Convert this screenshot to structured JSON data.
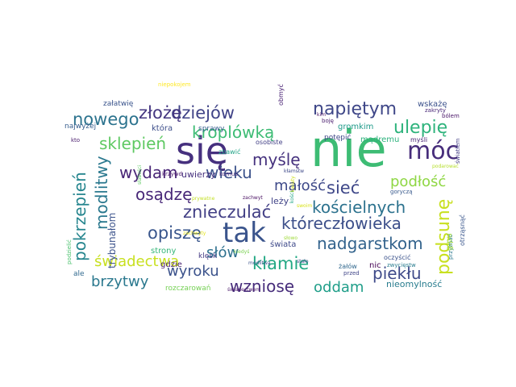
{
  "words": [
    {
      "text": "nie",
      "color": "#3dbc74"
    },
    {
      "text": "się",
      "color": "#46307e"
    },
    {
      "text": "tak",
      "color": "#3a548c"
    },
    {
      "text": "móc",
      "color": "#472d7b"
    },
    {
      "text": "podsunę",
      "color": "#c8e020"
    },
    {
      "text": "napiętym",
      "color": "#3f4788"
    },
    {
      "text": "ulepię",
      "color": "#2eb37c"
    },
    {
      "text": "dziejów",
      "color": "#404387"
    },
    {
      "text": "złożę",
      "color": "#453781"
    },
    {
      "text": "nowego",
      "color": "#2c738e"
    },
    {
      "text": "kroplówką",
      "color": "#3dbc74"
    },
    {
      "text": "sklepień",
      "color": "#5ec962"
    },
    {
      "text": "myślę",
      "color": "#46327e"
    },
    {
      "text": "wydam",
      "color": "#482576"
    },
    {
      "text": "wieku",
      "color": "#3b528b"
    },
    {
      "text": "modlitwy",
      "color": "#2a788e"
    },
    {
      "text": "pokrzepień",
      "color": "#25858e"
    },
    {
      "text": "osądzę",
      "color": "#482878"
    },
    {
      "text": "małość",
      "color": "#3e4989"
    },
    {
      "text": "sieć",
      "color": "#3f4889"
    },
    {
      "text": "podłość",
      "color": "#8fd744"
    },
    {
      "text": "kościelnych",
      "color": "#2c728e"
    },
    {
      "text": "znieczulać",
      "color": "#423f85"
    },
    {
      "text": "opiszę",
      "color": "#39568c"
    },
    {
      "text": "któreczłowieka",
      "color": "#3c4f8a"
    },
    {
      "text": "nadgarstkom",
      "color": "#33638d"
    },
    {
      "text": "świadectwa",
      "color": "#c8e020"
    },
    {
      "text": "słów",
      "color": "#2d708e"
    },
    {
      "text": "kłamie",
      "color": "#22a884"
    },
    {
      "text": "brzytwy",
      "color": "#2a788e"
    },
    {
      "text": "wyroku",
      "color": "#3b528b"
    },
    {
      "text": "wzniosę",
      "color": "#472d7b"
    },
    {
      "text": "piekłu",
      "color": "#3e4a89"
    },
    {
      "text": "oddam",
      "color": "#1f9e89"
    },
    {
      "text": "trybunałom",
      "color": "#3b528b"
    },
    {
      "text": "uwierzy",
      "color": "#46307e"
    },
    {
      "text": "gdzie",
      "color": "#481f70"
    },
    {
      "text": "leży",
      "color": "#414487"
    },
    {
      "text": "strony",
      "color": "#35b779"
    },
    {
      "text": "świata",
      "color": "#3e4989"
    },
    {
      "text": "klęsk",
      "color": "#443983"
    },
    {
      "text": "nic",
      "color": "#440154"
    },
    {
      "text": "nieomylność",
      "color": "#287c8e"
    },
    {
      "text": "gromkim",
      "color": "#1f9a8a"
    },
    {
      "text": "mądremu",
      "color": "#2db27d"
    },
    {
      "text": "myśli",
      "color": "#482475"
    },
    {
      "text": "wskażę",
      "color": "#3b518b"
    },
    {
      "text": "potępić",
      "color": "#3f4788"
    },
    {
      "text": "osobiste",
      "color": "#423f85"
    },
    {
      "text": "sprawy",
      "color": "#365c8d"
    },
    {
      "text": "która",
      "color": "#3d4e8a"
    },
    {
      "text": "najwyżej",
      "color": "#365d8d"
    },
    {
      "text": "załatwię",
      "color": "#3a548c"
    },
    {
      "text": "podzielić",
      "color": "#4ac16d"
    },
    {
      "text": "krzywd",
      "color": "#48186a"
    },
    {
      "text": "kto",
      "color": "#481a6c"
    },
    {
      "text": "ale",
      "color": "#30698e"
    },
    {
      "text": "obmyć",
      "color": "#482173"
    },
    {
      "text": "boję",
      "color": "#481b6d"
    },
    {
      "text": "kim",
      "color": "#470e61"
    },
    {
      "text": "zakryty",
      "color": "#482677"
    },
    {
      "text": "bólem",
      "color": "#481467"
    },
    {
      "text": "światłem",
      "color": "#433e85"
    },
    {
      "text": "podarować",
      "color": "#b5de2b"
    },
    {
      "text": "zbawić",
      "color": "#20a386"
    },
    {
      "text": "komuś",
      "color": "#482979"
    },
    {
      "text": "zachwyt",
      "color": "#470d60"
    },
    {
      "text": "rozczarowań",
      "color": "#75d054"
    },
    {
      "text": "świadectwem",
      "color": "#481668"
    },
    {
      "text": "przed",
      "color": "#404588"
    },
    {
      "text": "stało",
      "color": "#3f4788"
    },
    {
      "text": "żałów",
      "color": "#31688e"
    },
    {
      "text": "oczyścić",
      "color": "#3b528b"
    },
    {
      "text": "zwycięstw",
      "color": "#287c8e"
    },
    {
      "text": "przyznać",
      "color": "#2a788e"
    },
    {
      "text": "otrząsnąć",
      "color": "#39568c"
    },
    {
      "text": "gipu",
      "color": "#9bd93c"
    },
    {
      "text": "goryczą",
      "color": "#38598c"
    },
    {
      "text": "modlitwą",
      "color": "#3b528b"
    },
    {
      "text": "kłamstw",
      "color": "#3e4989"
    },
    {
      "text": "niepokojem",
      "color": "#fde725"
    },
    {
      "text": "słabości",
      "color": "#5ec962"
    },
    {
      "text": "kiedyś",
      "color": "#7ad151"
    },
    {
      "text": "kości",
      "color": "#20a486"
    },
    {
      "text": "prywatne",
      "color": "#c2df23"
    },
    {
      "text": "zachwyty",
      "color": "#e5e419"
    },
    {
      "text": "kwiaty",
      "color": "#d0e11c"
    },
    {
      "text": "swoim",
      "color": "#d8e219"
    },
    {
      "text": "słowo",
      "color": "#9fda3a"
    }
  ]
}
